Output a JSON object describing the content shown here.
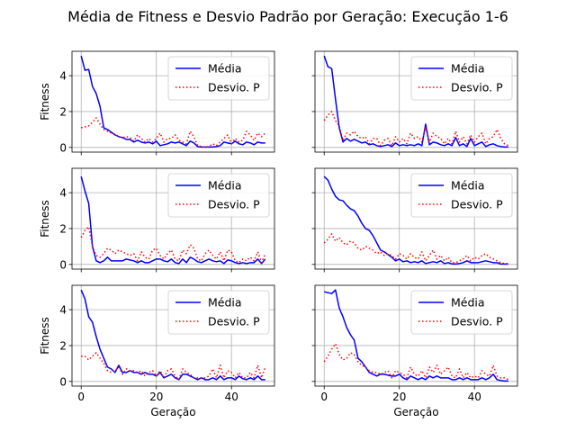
{
  "figure": {
    "title": "Média de Fitness e Desvio Padrão por Geração: Execução 1-6"
  },
  "colors": {
    "media": "#0000ff",
    "desvio": "#ff0000",
    "grid": "#b0b0b0"
  },
  "chart_data": [
    {
      "type": "line",
      "position": "row1-left",
      "x": [
        0,
        1,
        2,
        3,
        4,
        5,
        6,
        7,
        8,
        9,
        10,
        11,
        12,
        13,
        14,
        15,
        16,
        17,
        18,
        19,
        20,
        21,
        22,
        23,
        24,
        25,
        26,
        27,
        28,
        29,
        30,
        31,
        32,
        33,
        34,
        35,
        36,
        37,
        38,
        39,
        40,
        41,
        42,
        43,
        44,
        45,
        46,
        47,
        48,
        49
      ],
      "xlim": [
        -2.45,
        51.45
      ],
      "ylim": [
        -0.26,
        5.36
      ],
      "xticks": [
        0,
        20,
        40
      ],
      "yticks": [
        0,
        2,
        4
      ],
      "ylabel": "Fitness",
      "xlabel": "",
      "show_x_ticklabels": false,
      "show_y_ticklabels": true,
      "legend": {
        "placement": "upper right",
        "entries": [
          "Média",
          "Desvio. P"
        ]
      },
      "grid": true,
      "series": [
        {
          "name": "Média",
          "style": "solid",
          "values": [
            5.1,
            4.3,
            4.35,
            3.4,
            3.0,
            2.3,
            1.1,
            1.0,
            0.85,
            0.7,
            0.6,
            0.55,
            0.45,
            0.45,
            0.3,
            0.4,
            0.3,
            0.25,
            0.3,
            0.2,
            0.35,
            0.1,
            0.15,
            0.2,
            0.3,
            0.25,
            0.3,
            0.2,
            0.1,
            0.35,
            0.25,
            0.05,
            0.02,
            0.02,
            0.02,
            0.03,
            0.05,
            0.1,
            0.3,
            0.25,
            0.2,
            0.35,
            0.2,
            0.15,
            0.3,
            0.25,
            0.15,
            0.3,
            0.25,
            0.25
          ]
        },
        {
          "name": "Desvio. P",
          "style": "dotted",
          "values": [
            1.1,
            1.15,
            1.2,
            1.4,
            1.65,
            1.3,
            1.0,
            0.9,
            0.8,
            0.75,
            0.6,
            0.55,
            0.6,
            0.55,
            0.35,
            0.7,
            0.5,
            0.3,
            0.5,
            0.3,
            0.5,
            0.8,
            0.3,
            0.5,
            0.5,
            0.7,
            0.4,
            0.3,
            0.2,
            0.9,
            0.6,
            0.1,
            0.05,
            0.02,
            0.05,
            0.2,
            0.1,
            0.3,
            0.5,
            0.7,
            0.2,
            0.5,
            0.3,
            0.4,
            0.9,
            0.7,
            0.4,
            0.8,
            0.6,
            0.8
          ]
        }
      ]
    },
    {
      "type": "line",
      "position": "row1-right",
      "x": [
        0,
        1,
        2,
        3,
        4,
        5,
        6,
        7,
        8,
        9,
        10,
        11,
        12,
        13,
        14,
        15,
        16,
        17,
        18,
        19,
        20,
        21,
        22,
        23,
        24,
        25,
        26,
        27,
        28,
        29,
        30,
        31,
        32,
        33,
        34,
        35,
        36,
        37,
        38,
        39,
        40,
        41,
        42,
        43,
        44,
        45,
        46,
        47,
        48,
        49
      ],
      "xlim": [
        -2.45,
        51.45
      ],
      "ylim": [
        -0.26,
        5.36
      ],
      "xticks": [
        0,
        20,
        40
      ],
      "yticks": [
        0,
        2,
        4
      ],
      "ylabel": "",
      "xlabel": "",
      "show_x_ticklabels": false,
      "show_y_ticklabels": false,
      "legend": {
        "placement": "upper right",
        "entries": [
          "Média",
          "Desvio. P"
        ]
      },
      "grid": true,
      "series": [
        {
          "name": "Média",
          "style": "solid",
          "values": [
            5.1,
            4.5,
            4.4,
            2.7,
            1.1,
            0.3,
            0.5,
            0.35,
            0.45,
            0.35,
            0.25,
            0.3,
            0.15,
            0.2,
            0.1,
            0.05,
            0.1,
            0.15,
            0.05,
            0.25,
            0.1,
            0.15,
            0.1,
            0.15,
            0.1,
            0.2,
            0.1,
            1.3,
            0.15,
            0.3,
            0.25,
            0.15,
            0.1,
            0.2,
            0.1,
            0.55,
            0.1,
            0.2,
            0.05,
            0.5,
            0.1,
            0.2,
            0.3,
            0.05,
            0.15,
            0.2,
            0.1,
            0.05,
            0.02,
            0.02
          ]
        },
        {
          "name": "Desvio. P",
          "style": "dotted",
          "values": [
            1.5,
            1.8,
            2.0,
            1.5,
            1.2,
            0.4,
            0.8,
            0.7,
            0.9,
            0.6,
            0.5,
            0.6,
            0.2,
            0.5,
            0.5,
            0.1,
            0.4,
            0.5,
            0.1,
            0.6,
            0.3,
            0.5,
            0.2,
            0.8,
            0.5,
            0.6,
            0.3,
            1.1,
            0.3,
            0.8,
            0.6,
            0.5,
            0.2,
            0.5,
            0.2,
            0.9,
            0.3,
            0.6,
            0.2,
            0.7,
            0.3,
            0.6,
            0.8,
            0.2,
            0.5,
            0.6,
            1.0,
            0.5,
            0.2,
            0.1
          ]
        }
      ]
    },
    {
      "type": "line",
      "position": "row2-left",
      "x": [
        0,
        1,
        2,
        3,
        4,
        5,
        6,
        7,
        8,
        9,
        10,
        11,
        12,
        13,
        14,
        15,
        16,
        17,
        18,
        19,
        20,
        21,
        22,
        23,
        24,
        25,
        26,
        27,
        28,
        29,
        30,
        31,
        32,
        33,
        34,
        35,
        36,
        37,
        38,
        39,
        40,
        41,
        42,
        43,
        44,
        45,
        46,
        47,
        48,
        49
      ],
      "xlim": [
        -2.45,
        51.45
      ],
      "ylim": [
        -0.26,
        5.36
      ],
      "xticks": [
        0,
        20,
        40
      ],
      "yticks": [
        0,
        2,
        4
      ],
      "ylabel": "Fitness",
      "xlabel": "",
      "show_x_ticklabels": false,
      "show_y_ticklabels": true,
      "legend": {
        "placement": "upper right",
        "entries": [
          "Média",
          "Desvio. P"
        ]
      },
      "grid": true,
      "series": [
        {
          "name": "Média",
          "style": "solid",
          "values": [
            4.9,
            4.1,
            3.4,
            1.0,
            0.2,
            0.1,
            0.2,
            0.4,
            0.2,
            0.2,
            0.2,
            0.2,
            0.3,
            0.25,
            0.2,
            0.1,
            0.2,
            0.1,
            0.1,
            0.2,
            0.3,
            0.3,
            0.2,
            0.15,
            0.3,
            0.1,
            0.05,
            0.3,
            0.1,
            0.4,
            0.3,
            0.15,
            0.1,
            0.2,
            0.3,
            0.2,
            0.15,
            0.2,
            0.05,
            0.25,
            0.2,
            0.1,
            0.05,
            0.1,
            0.05,
            0.1,
            0.1,
            0.3,
            0.05,
            0.3
          ]
        },
        {
          "name": "Desvio. P",
          "style": "dotted",
          "values": [
            1.5,
            1.9,
            2.1,
            1.0,
            0.5,
            0.4,
            0.6,
            0.9,
            0.8,
            0.6,
            0.8,
            0.7,
            0.6,
            0.5,
            0.6,
            0.2,
            0.7,
            0.4,
            0.3,
            0.8,
            0.9,
            0.5,
            0.3,
            0.6,
            0.8,
            0.3,
            0.2,
            0.8,
            0.6,
            1.1,
            0.9,
            0.3,
            0.2,
            0.6,
            0.8,
            0.5,
            0.3,
            0.7,
            0.2,
            0.8,
            0.7,
            0.2,
            0.1,
            0.3,
            0.2,
            0.4,
            0.2,
            0.7,
            0.1,
            0.6
          ]
        }
      ]
    },
    {
      "type": "line",
      "position": "row2-right",
      "x": [
        0,
        1,
        2,
        3,
        4,
        5,
        6,
        7,
        8,
        9,
        10,
        11,
        12,
        13,
        14,
        15,
        16,
        17,
        18,
        19,
        20,
        21,
        22,
        23,
        24,
        25,
        26,
        27,
        28,
        29,
        30,
        31,
        32,
        33,
        34,
        35,
        36,
        37,
        38,
        39,
        40,
        41,
        42,
        43,
        44,
        45,
        46,
        47,
        48,
        49
      ],
      "xlim": [
        -2.45,
        51.45
      ],
      "ylim": [
        -0.26,
        5.36
      ],
      "xticks": [
        0,
        20,
        40
      ],
      "yticks": [
        0,
        2,
        4
      ],
      "ylabel": "",
      "xlabel": "",
      "show_x_ticklabels": false,
      "show_y_ticklabels": false,
      "legend": {
        "placement": "upper right",
        "entries": [
          "Média",
          "Desvio. P"
        ]
      },
      "grid": true,
      "series": [
        {
          "name": "Média",
          "style": "solid",
          "values": [
            4.9,
            4.7,
            4.2,
            3.8,
            3.6,
            3.55,
            3.3,
            3.1,
            3.0,
            2.7,
            2.3,
            2.0,
            1.9,
            1.6,
            1.2,
            0.8,
            0.7,
            0.55,
            0.4,
            0.2,
            0.3,
            0.15,
            0.2,
            0.1,
            0.15,
            0.1,
            0.2,
            0.05,
            0.1,
            0.15,
            0.1,
            0.2,
            0.05,
            0.1,
            0.03,
            0.02,
            0.05,
            0.1,
            0.2,
            0.1,
            0.1,
            0.1,
            0.15,
            0.2,
            0.15,
            0.1,
            0.1,
            0.02,
            0.02,
            0.02
          ]
        },
        {
          "name": "Desvio. P",
          "style": "dotted",
          "values": [
            1.2,
            1.4,
            1.7,
            1.3,
            1.5,
            1.2,
            1.1,
            1.3,
            1.2,
            0.9,
            0.8,
            1.0,
            0.9,
            0.8,
            0.6,
            0.7,
            0.5,
            0.6,
            0.5,
            0.3,
            0.6,
            0.5,
            0.3,
            0.6,
            0.4,
            0.3,
            0.7,
            0.2,
            0.5,
            0.8,
            0.3,
            0.5,
            0.2,
            0.4,
            0.1,
            0.1,
            0.2,
            0.3,
            0.5,
            0.2,
            0.4,
            0.3,
            0.5,
            0.6,
            0.4,
            0.3,
            0.2,
            0.1,
            0.05,
            0.05
          ]
        }
      ]
    },
    {
      "type": "line",
      "position": "row3-left",
      "x": [
        0,
        1,
        2,
        3,
        4,
        5,
        6,
        7,
        8,
        9,
        10,
        11,
        12,
        13,
        14,
        15,
        16,
        17,
        18,
        19,
        20,
        21,
        22,
        23,
        24,
        25,
        26,
        27,
        28,
        29,
        30,
        31,
        32,
        33,
        34,
        35,
        36,
        37,
        38,
        39,
        40,
        41,
        42,
        43,
        44,
        45,
        46,
        47,
        48,
        49
      ],
      "xlim": [
        -2.45,
        51.45
      ],
      "ylim": [
        -0.26,
        5.36
      ],
      "xticks": [
        0,
        20,
        40
      ],
      "yticks": [
        0,
        2,
        4
      ],
      "ylabel": "Fitness",
      "xlabel": "Geração",
      "show_x_ticklabels": true,
      "show_y_ticklabels": true,
      "legend": {
        "placement": "upper right",
        "entries": [
          "Média",
          "Desvio. P"
        ]
      },
      "grid": true,
      "series": [
        {
          "name": "Média",
          "style": "solid",
          "values": [
            5.1,
            4.6,
            3.6,
            3.3,
            2.5,
            1.8,
            1.3,
            0.8,
            0.7,
            0.5,
            0.9,
            0.5,
            0.5,
            0.6,
            0.5,
            0.5,
            0.4,
            0.5,
            0.4,
            0.4,
            0.3,
            0.5,
            0.2,
            0.3,
            0.4,
            0.2,
            0.1,
            0.4,
            0.4,
            0.3,
            0.2,
            0.1,
            0.2,
            0.1,
            0.1,
            0.2,
            0.1,
            0.3,
            0.1,
            0.2,
            0.2,
            0.1,
            0.3,
            0.15,
            0.1,
            0.2,
            0.1,
            0.3,
            0.1,
            0.1
          ]
        },
        {
          "name": "Desvio. P",
          "style": "dotted",
          "values": [
            1.4,
            1.4,
            1.2,
            1.4,
            1.6,
            1.3,
            1.0,
            0.6,
            0.5,
            0.6,
            0.8,
            0.4,
            0.7,
            0.6,
            0.6,
            0.5,
            0.6,
            0.3,
            0.5,
            0.6,
            0.3,
            0.6,
            0.2,
            0.6,
            0.7,
            0.3,
            0.1,
            0.7,
            0.5,
            0.4,
            0.2,
            0.2,
            0.2,
            0.2,
            0.3,
            0.7,
            0.2,
            0.9,
            0.2,
            0.6,
            0.5,
            0.2,
            0.5,
            0.2,
            0.2,
            0.5,
            0.2,
            0.9,
            0.2,
            0.8
          ]
        }
      ]
    },
    {
      "type": "line",
      "position": "row3-right",
      "x": [
        0,
        1,
        2,
        3,
        4,
        5,
        6,
        7,
        8,
        9,
        10,
        11,
        12,
        13,
        14,
        15,
        16,
        17,
        18,
        19,
        20,
        21,
        22,
        23,
        24,
        25,
        26,
        27,
        28,
        29,
        30,
        31,
        32,
        33,
        34,
        35,
        36,
        37,
        38,
        39,
        40,
        41,
        42,
        43,
        44,
        45,
        46,
        47,
        48,
        49
      ],
      "xlim": [
        -2.45,
        51.45
      ],
      "ylim": [
        -0.26,
        5.36
      ],
      "xticks": [
        0,
        20,
        40
      ],
      "yticks": [
        0,
        2,
        4
      ],
      "ylabel": "",
      "xlabel": "Geração",
      "show_x_ticklabels": true,
      "show_y_ticklabels": false,
      "legend": {
        "placement": "upper right",
        "entries": [
          "Média",
          "Desvio. P"
        ]
      },
      "grid": true,
      "series": [
        {
          "name": "Média",
          "style": "solid",
          "values": [
            5.0,
            4.95,
            4.9,
            5.1,
            4.1,
            3.6,
            3.0,
            2.6,
            2.3,
            1.3,
            1.1,
            0.8,
            0.5,
            0.4,
            0.3,
            0.4,
            0.4,
            0.35,
            0.3,
            0.3,
            0.4,
            0.2,
            0.1,
            0.3,
            0.2,
            0.1,
            0.2,
            0.1,
            0.3,
            0.2,
            0.3,
            0.2,
            0.2,
            0.2,
            0.1,
            0.1,
            0.2,
            0.1,
            0.2,
            0.1,
            0.1,
            0.1,
            0.2,
            0.1,
            0.2,
            0.4,
            0.1,
            0.05,
            0.02,
            0.02
          ]
        },
        {
          "name": "Desvio. P",
          "style": "dotted",
          "values": [
            1.1,
            1.4,
            1.8,
            2.1,
            1.5,
            1.2,
            1.3,
            1.6,
            1.5,
            1.1,
            0.9,
            0.8,
            0.6,
            0.5,
            0.5,
            0.4,
            0.5,
            0.6,
            0.2,
            0.6,
            0.5,
            0.4,
            0.2,
            0.8,
            0.4,
            0.3,
            0.6,
            0.2,
            0.8,
            0.5,
            0.9,
            0.4,
            0.6,
            0.8,
            0.3,
            0.2,
            0.7,
            0.2,
            0.5,
            0.2,
            0.3,
            0.2,
            0.6,
            0.4,
            0.3,
            0.9,
            0.3,
            0.2,
            0.2,
            0.1
          ]
        }
      ]
    }
  ]
}
